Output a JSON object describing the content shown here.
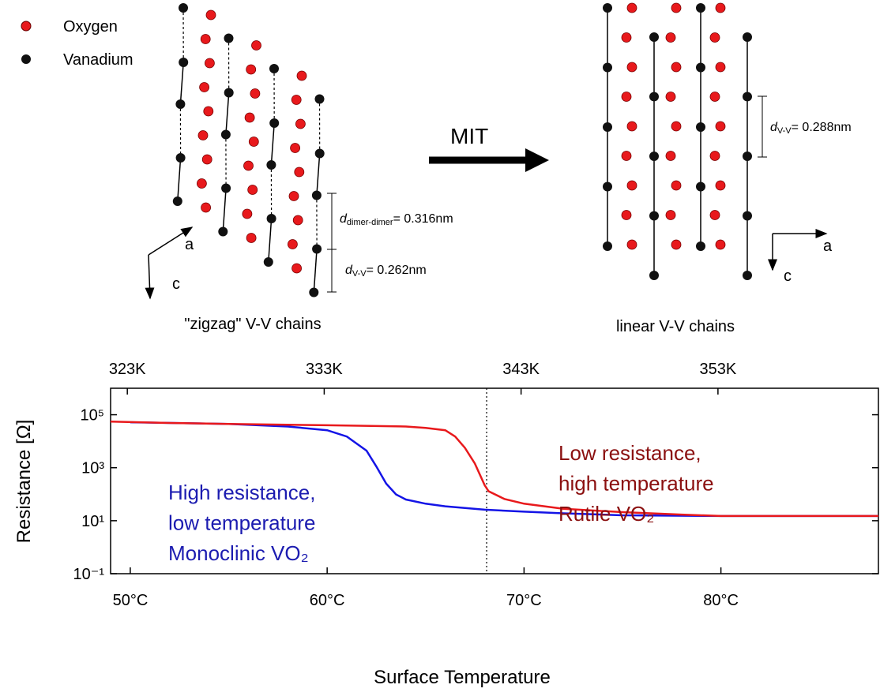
{
  "diagram": {
    "legend": [
      "Oxygen",
      "Vanadium"
    ],
    "left_caption": "\"zigzag\" V-V chains",
    "right_caption": "linear V-V chains",
    "transition": "MIT",
    "left_axes": [
      "a",
      "c"
    ],
    "right_axes": [
      "a",
      "c"
    ],
    "d_dimer": {
      "symbol": "d",
      "subscript": "dimer-dimer",
      "text": "= 0.316nm"
    },
    "d_vv_left": {
      "symbol": "d",
      "subscript": "V-V",
      "text": "= 0.262nm"
    },
    "d_vv_right": {
      "symbol": "d",
      "subscript": "V-V",
      "text": "= 0.288nm"
    }
  },
  "chart_data": {
    "type": "line",
    "xlabel": "Surface Temperature",
    "ylabel": "Resistance [Ω]",
    "xlim": [
      49,
      88
    ],
    "xticks": [
      {
        "value": 50,
        "label": "50°C"
      },
      {
        "value": 60,
        "label": "60°C"
      },
      {
        "value": 70,
        "label": "70°C"
      },
      {
        "value": 80,
        "label": "80°C"
      }
    ],
    "x2lim": [
      322.15,
      361.15
    ],
    "x2ticks": [
      {
        "value": 323,
        "label": "323K"
      },
      {
        "value": 333,
        "label": "333K"
      },
      {
        "value": 343,
        "label": "343K"
      },
      {
        "value": 353,
        "label": "353K"
      }
    ],
    "ylim": [
      0.1,
      1000000
    ],
    "log_y": true,
    "yticks": [
      {
        "value": 0.1,
        "label": "10⁻¹"
      },
      {
        "value": 10,
        "label": "10¹"
      },
      {
        "value": 1000,
        "label": "10³"
      },
      {
        "value": 100000,
        "label": "10⁵"
      }
    ],
    "grid": false,
    "vline_x": 68.1,
    "series": [
      {
        "name": "Monoclinic VO₂",
        "color": "#1414e6",
        "x": [
          50,
          55,
          58,
          60,
          61,
          62,
          62.5,
          63,
          63.5,
          64,
          65,
          66,
          68,
          70,
          72,
          75,
          80,
          88
        ],
        "values": [
          52000,
          45000,
          36000,
          26000,
          15000,
          4400,
          1100,
          250,
          98,
          63,
          44,
          35,
          26,
          22,
          19,
          16,
          15,
          15
        ]
      },
      {
        "name": "Rutile VO₂",
        "color": "#e8191c",
        "x": [
          49,
          52,
          55,
          60,
          64,
          65,
          66,
          66.5,
          67,
          67.5,
          68,
          68.2,
          69,
          70,
          72,
          75,
          78,
          80,
          88
        ],
        "values": [
          55000,
          49000,
          45000,
          40000,
          36000,
          32000,
          26000,
          15000,
          5600,
          1450,
          220,
          130,
          66,
          44,
          28,
          21,
          17,
          15,
          15
        ]
      }
    ],
    "annotations": [
      {
        "color": "#1c1cb0",
        "lines": [
          "High resistance,",
          "low temperature",
          "Monoclinic VO₂"
        ]
      },
      {
        "color": "#8b1010",
        "lines": [
          "Low resistance,",
          "high temperature",
          "Rutile VO₂"
        ]
      }
    ]
  }
}
